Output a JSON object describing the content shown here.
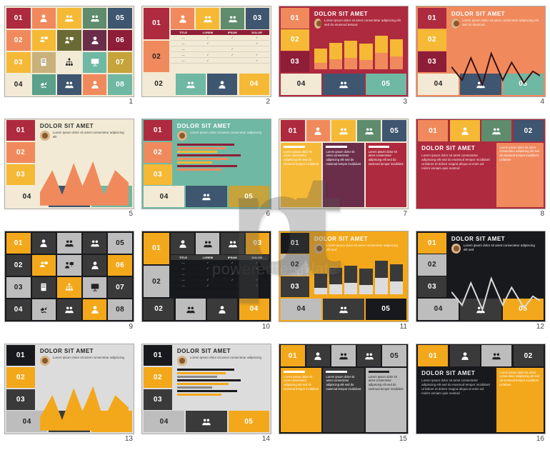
{
  "watermark": {
    "letters": "pt",
    "text": "poweredtemplate"
  },
  "rows_light_colors": {
    "maroon": "#ae2a3e",
    "red": "#b5283e",
    "orange": "#f08a5d",
    "yellow": "#f5b935",
    "mustard": "#c6a33b",
    "teal": "#5aa08a",
    "aqua": "#6fb8a3",
    "navy": "#3e5670",
    "purple": "#6a2e4a",
    "darkred": "#8e1d38",
    "cream": "#f2ead5",
    "white": "#ffffff",
    "tan": "#c9b27a",
    "olive": "#9a9a4f",
    "dark": "#18191c",
    "amber": "#f3a81b",
    "grey": "#bdbdbd",
    "lightgrey": "#dcdcdc",
    "dgrey": "#3a3a3a"
  },
  "slides": [
    {
      "n": 1,
      "bg": "#f2ead5",
      "tiles": [
        [
          "01",
          "#ae2a3e"
        ],
        [
          "",
          "#f08a5d",
          "person"
        ],
        [
          "",
          "#f5b935",
          "group"
        ],
        [
          "",
          "#5e8c6c",
          "group"
        ],
        [
          "05",
          "#3e5670"
        ],
        [
          "02",
          "#f08a5d"
        ],
        [
          "",
          "#f5b935",
          "chat"
        ],
        [
          "",
          "#6a6a34",
          "present"
        ],
        [
          "",
          "#6a2e4a",
          "person"
        ],
        [
          "06",
          "#8e1d38"
        ],
        [
          "03",
          "#f5b935"
        ],
        [
          "",
          "#c9b27a",
          "doc"
        ],
        [
          "",
          "#f2ead5",
          "tree",
          "dark"
        ],
        [
          "",
          "#6fb8a3",
          "board"
        ],
        [
          "07",
          "#c6a33b"
        ],
        [
          "04",
          "#f2ead5",
          "",
          "dark"
        ],
        [
          "",
          "#5aa08a",
          "hands"
        ],
        [
          "",
          "#3e5670",
          "group"
        ],
        [
          "",
          "#f08a5d",
          "person"
        ],
        [
          "08",
          "#6fb8a3"
        ]
      ],
      "cols": 5,
      "rows": 4
    },
    {
      "n": 2,
      "bg": "#f2ead5",
      "left": [
        [
          "01",
          "#ae2a3e"
        ],
        [
          "02",
          "#f08a5d",
          "",
          "dark"
        ]
      ],
      "leftbottom": [
        [
          "02",
          "#f2ead5",
          "hands",
          "dark"
        ],
        [
          "",
          "#6fb8a3",
          "group"
        ],
        [
          "",
          "#3e5670",
          "person"
        ],
        [
          "04",
          "#f5b935"
        ]
      ],
      "topright": [
        [
          "",
          "#f08a5d",
          "person"
        ],
        [
          "",
          "#f5b935",
          "group"
        ],
        [
          "",
          "#5e8c6c",
          "group"
        ],
        [
          "03",
          "#3e5670"
        ]
      ],
      "table": {
        "head_bg": "#8e1d38",
        "head": [
          "TITLE",
          "LOREM",
          "IPSUM",
          "DOLOR"
        ],
        "rows": [
          [
            "—",
            "✓",
            "✓",
            "✓"
          ],
          [
            "—",
            "✓",
            "",
            "✓"
          ],
          [
            "—",
            "",
            "✓",
            ""
          ],
          [
            "—",
            "✓",
            "✓",
            "✓"
          ],
          [
            "—",
            "✓",
            "",
            "✓"
          ]
        ]
      }
    },
    {
      "n": 3,
      "bg": "#ae2a3e",
      "left": [
        [
          "01",
          "#f08a5d"
        ],
        [
          "02",
          "#f5b935"
        ],
        [
          "03",
          "#8e1d38"
        ]
      ],
      "bottom": [
        [
          "04",
          "#f2ead5",
          "hands",
          "dark"
        ],
        [
          "",
          "#3e5670",
          "group"
        ],
        [
          "05",
          "#6fb8a3"
        ]
      ],
      "title": "DOLOR SIT AMET",
      "avatar": true,
      "para": "Lorem ipsum dolor sit amet consectetur adipiscing elit sed do eiusmod tempor",
      "bars": {
        "colors": [
          "#f5b935",
          "#f5b935",
          "#f5b935",
          "#f5b935",
          "#f5b935",
          "#f5b935"
        ],
        "overlay": [
          "#f08a5d",
          "#f08a5d",
          "#f08a5d",
          "#f08a5d",
          "#f08a5d",
          "#f08a5d"
        ],
        "vals": [
          55,
          70,
          75,
          68,
          88,
          78
        ]
      }
    },
    {
      "n": 4,
      "bg": "#f08a5d",
      "left": [
        [
          "01",
          "#ae2a3e"
        ],
        [
          "02",
          "#f5b935"
        ],
        [
          "03",
          "#8e1d38"
        ]
      ],
      "bottom": [
        [
          "04",
          "#f2ead5",
          "hands",
          "dark"
        ],
        [
          "",
          "#3e5670",
          "group"
        ],
        [
          "05",
          "#6fb8a3"
        ]
      ],
      "title": "DOLOR SIT AMET",
      "avatar": true,
      "para": "Lorem ipsum dolor sit amet consectetur adipiscing elit sed do eiusmod",
      "line": {
        "color": "#3a1010",
        "points": [
          0,
          40,
          12,
          55,
          22,
          30,
          35,
          60,
          45,
          25,
          58,
          55,
          68,
          35,
          82,
          58,
          92,
          45,
          100,
          50
        ]
      }
    },
    {
      "n": 5,
      "bg": "#f2ead5",
      "left": [
        [
          "01",
          "#ae2a3e"
        ],
        [
          "02",
          "#f08a5d"
        ],
        [
          "03",
          "#f5b935"
        ]
      ],
      "bottom": [
        [
          "04",
          "#f2ead5",
          "hands",
          "dark"
        ],
        [
          "",
          "#3e5670",
          "group"
        ],
        [
          "05",
          "#6fb8a3"
        ]
      ],
      "title": "DOLOR SIT AMET",
      "title_color": "#333",
      "avatar": true,
      "para": "Lorem ipsum dolor sit amet consectetur adipiscing elit",
      "area": {
        "color": "#f08a5d",
        "points": [
          0,
          55,
          14,
          30,
          25,
          58,
          38,
          22,
          48,
          48,
          60,
          20,
          72,
          58,
          85,
          30,
          100,
          44
        ]
      }
    },
    {
      "n": 6,
      "bg": "#6fb8a3",
      "left": [
        [
          "01",
          "#ae2a3e"
        ],
        [
          "02",
          "#f08a5d"
        ],
        [
          "03",
          "#f5b935"
        ]
      ],
      "bottom": [
        [
          "04",
          "#f2ead5",
          "hands",
          "dark"
        ],
        [
          "",
          "#3e5670",
          "group"
        ],
        [
          "05",
          "#c6a33b"
        ]
      ],
      "title": "DOLOR SIT AMET",
      "avatar": true,
      "para": "Lorem ipsum dolor sit amet consectetur adipiscing",
      "hbars": {
        "colors": [
          "#8e1d38",
          "#f08a5d",
          "#f5b935",
          "#8e1d38",
          "#f08a5d",
          "#f5b935",
          "#8e1d38",
          "#f08a5d"
        ],
        "vals": [
          65,
          55,
          45,
          72,
          58,
          40,
          68,
          50
        ]
      }
    },
    {
      "n": 7,
      "bg": "#f2ead5",
      "top": [
        [
          "01",
          "#ae2a3e"
        ],
        [
          "",
          "#f08a5d",
          "person"
        ],
        [
          "",
          "#f5b935",
          "group"
        ],
        [
          "",
          "#5e8c6c",
          "group"
        ],
        [
          "05",
          "#3e5670"
        ]
      ],
      "cols3": [
        {
          "bg": "#f5b935",
          "head": "TITLE",
          "body": "Lorem ipsum dolor sit amet consectetur adipiscing elit sed do eiusmod tempor incididunt"
        },
        {
          "bg": "#6a2e4a",
          "head": "TITLE",
          "body": "Lorem ipsum dolor sit amet consectetur adipiscing elit sed do eiusmod tempor incididunt"
        },
        {
          "bg": "#ae2a3e",
          "head": "TITLE",
          "body": "Lorem ipsum dolor sit amet consectetur adipiscing elit sed do eiusmod tempor incididunt"
        }
      ]
    },
    {
      "n": 8,
      "bg": "#ae2a3e",
      "top": [
        [
          "01",
          "#f08a5d"
        ],
        [
          "",
          "#f5b935",
          "person"
        ],
        [
          "",
          "#5e8c6c",
          "group"
        ],
        [
          "02",
          "#3e5670"
        ]
      ],
      "title": "DOLOR SIT AMET",
      "para": "Lorem ipsum dolor sit amet consectetur adipiscing elit sed do eiusmod tempor incididunt ut labore et dolore magna aliqua ut enim ad minim veniam quis nostrud",
      "side": {
        "bg": "#f08a5d",
        "body": "Lorem ipsum dolor sit amet consectetur adipiscing elit sed do eiusmod tempor incididunt ut labore"
      }
    },
    {
      "n": 9,
      "bg": "#18191c",
      "dark": true,
      "tiles": [
        [
          "01",
          "#f3a81b"
        ],
        [
          "",
          "#3a3a3a",
          "person"
        ],
        [
          "",
          "#bdbdbd",
          "group",
          "dark"
        ],
        [
          "",
          "#3a3a3a",
          "group"
        ],
        [
          "05",
          "#bdbdbd",
          "",
          "dark"
        ],
        [
          "02",
          "#3a3a3a"
        ],
        [
          "",
          "#f3a81b",
          "chat"
        ],
        [
          "",
          "#bdbdbd",
          "present",
          "dark"
        ],
        [
          "",
          "#3a3a3a",
          "person"
        ],
        [
          "06",
          "#f3a81b"
        ],
        [
          "03",
          "#bdbdbd",
          "",
          "dark"
        ],
        [
          "",
          "#3a3a3a",
          "doc"
        ],
        [
          "",
          "#f3a81b",
          "tree"
        ],
        [
          "",
          "#bdbdbd",
          "board",
          "dark"
        ],
        [
          "07",
          "#3a3a3a"
        ],
        [
          "04",
          "#3a3a3a"
        ],
        [
          "",
          "#bdbdbd",
          "hands",
          "dark"
        ],
        [
          "",
          "#3a3a3a",
          "group"
        ],
        [
          "",
          "#f3a81b",
          "person"
        ],
        [
          "08",
          "#bdbdbd",
          "",
          "dark"
        ]
      ],
      "cols": 5,
      "rows": 4
    },
    {
      "n": 10,
      "bg": "#18191c",
      "dark": true,
      "left": [
        [
          "01",
          "#f3a81b"
        ],
        [
          "02",
          "#bdbdbd",
          "",
          "dark"
        ]
      ],
      "leftbottom": [
        [
          "02",
          "#3a3a3a",
          "hands"
        ],
        [
          "",
          "#bdbdbd",
          "group",
          "dark"
        ],
        [
          "",
          "#3a3a3a",
          "person"
        ],
        [
          "04",
          "#f3a81b"
        ]
      ],
      "topright": [
        [
          "",
          "#3a3a3a",
          "person"
        ],
        [
          "",
          "#bdbdbd",
          "group",
          "dark"
        ],
        [
          "",
          "#3a3a3a",
          "group"
        ],
        [
          "03",
          "#f3a81b"
        ]
      ],
      "table": {
        "head_bg": "#3a3a3a",
        "head": [
          "TITLE",
          "LOREM",
          "IPSUM",
          "DOLOR"
        ],
        "rows": [
          [
            "—",
            "✓",
            "✓",
            "✓"
          ],
          [
            "—",
            "✓",
            "",
            "✓"
          ],
          [
            "—",
            "",
            "✓",
            ""
          ],
          [
            "—",
            "✓",
            "✓",
            "✓"
          ],
          [
            "—",
            "✓",
            "",
            "✓"
          ]
        ]
      }
    },
    {
      "n": 11,
      "bg": "#f3a81b",
      "dark": true,
      "left": [
        [
          "01",
          "#18191c"
        ],
        [
          "02",
          "#bdbdbd",
          "",
          "dark"
        ],
        [
          "03",
          "#3a3a3a"
        ]
      ],
      "bottom": [
        [
          "04",
          "#bdbdbd",
          "hands",
          "dark"
        ],
        [
          "",
          "#3a3a3a",
          "group"
        ],
        [
          "05",
          "#18191c"
        ]
      ],
      "title": "DOLOR SIT AMET",
      "title_color": "#fff",
      "avatar": true,
      "para": "Lorem ipsum dolor sit amet consectetur adipiscing elit sed",
      "bars": {
        "colors": [
          "#3a3a3a",
          "#3a3a3a",
          "#3a3a3a",
          "#3a3a3a",
          "#3a3a3a",
          "#3a3a3a"
        ],
        "overlay": [
          "#dcdcdc",
          "#dcdcdc",
          "#dcdcdc",
          "#dcdcdc",
          "#dcdcdc",
          "#dcdcdc"
        ],
        "vals": [
          55,
          70,
          75,
          68,
          88,
          78
        ]
      }
    },
    {
      "n": 12,
      "bg": "#18191c",
      "dark": true,
      "left": [
        [
          "01",
          "#f3a81b"
        ],
        [
          "02",
          "#bdbdbd",
          "",
          "dark"
        ],
        [
          "03",
          "#3a3a3a"
        ]
      ],
      "bottom": [
        [
          "04",
          "#bdbdbd",
          "hands",
          "dark"
        ],
        [
          "",
          "#3a3a3a",
          "group"
        ],
        [
          "05",
          "#f3a81b"
        ]
      ],
      "title": "DOLOR SIT AMET",
      "avatar": true,
      "para": "Lorem ipsum dolor sit amet consectetur adipiscing elit sed",
      "line": {
        "color": "#dcdcdc",
        "points": [
          0,
          40,
          12,
          55,
          22,
          30,
          35,
          60,
          45,
          25,
          58,
          55,
          68,
          35,
          82,
          58,
          92,
          45,
          100,
          50
        ]
      }
    },
    {
      "n": 13,
      "bg": "#dcdcdc",
      "dark": true,
      "left": [
        [
          "01",
          "#18191c"
        ],
        [
          "02",
          "#f3a81b"
        ],
        [
          "03",
          "#3a3a3a"
        ]
      ],
      "bottom": [
        [
          "04",
          "#bdbdbd",
          "hands",
          "dark"
        ],
        [
          "",
          "#3a3a3a",
          "group"
        ],
        [
          "05",
          "#f3a81b"
        ]
      ],
      "title": "DOLOR SIT AMET",
      "title_color": "#222",
      "avatar": true,
      "para": "Lorem ipsum dolor sit amet consectetur adipiscing",
      "area": {
        "color": "#f3a81b",
        "points": [
          0,
          55,
          14,
          30,
          25,
          58,
          38,
          22,
          48,
          48,
          60,
          20,
          72,
          58,
          85,
          30,
          100,
          44
        ]
      }
    },
    {
      "n": 14,
      "bg": "#dcdcdc",
      "dark": true,
      "left": [
        [
          "01",
          "#18191c"
        ],
        [
          "02",
          "#f3a81b"
        ],
        [
          "03",
          "#3a3a3a"
        ]
      ],
      "bottom": [
        [
          "04",
          "#bdbdbd",
          "hands",
          "dark"
        ],
        [
          "",
          "#3a3a3a",
          "group"
        ],
        [
          "05",
          "#f3a81b"
        ]
      ],
      "title": "DOLOR SIT AMET",
      "title_color": "#222",
      "avatar": true,
      "para": "Lorem ipsum dolor sit amet consectetur adipiscing",
      "hbars": {
        "colors": [
          "#18191c",
          "#f3a81b",
          "#888",
          "#18191c",
          "#f3a81b",
          "#888",
          "#18191c",
          "#f3a81b"
        ],
        "vals": [
          65,
          55,
          45,
          72,
          58,
          40,
          68,
          50
        ]
      }
    },
    {
      "n": 15,
      "bg": "#18191c",
      "dark": true,
      "top": [
        [
          "01",
          "#f3a81b"
        ],
        [
          "",
          "#3a3a3a",
          "person"
        ],
        [
          "",
          "#bdbdbd",
          "group",
          "dark"
        ],
        [
          "",
          "#3a3a3a",
          "group"
        ],
        [
          "05",
          "#bdbdbd",
          "",
          "dark"
        ]
      ],
      "cols3": [
        {
          "bg": "#f3a81b",
          "head": "TITLE",
          "body": "Lorem ipsum dolor sit amet consectetur adipiscing elit sed do eiusmod tempor incididunt"
        },
        {
          "bg": "#3a3a3a",
          "head": "TITLE",
          "body": "Lorem ipsum dolor sit amet consectetur adipiscing elit sed do eiusmod tempor incididunt"
        },
        {
          "bg": "#bdbdbd",
          "head": "TITLE",
          "body": "Lorem ipsum dolor sit amet consectetur adipiscing elit sed do eiusmod tempor incididunt",
          "dark": true
        }
      ]
    },
    {
      "n": 16,
      "bg": "#18191c",
      "dark": true,
      "top": [
        [
          "01",
          "#f3a81b"
        ],
        [
          "",
          "#3a3a3a",
          "person"
        ],
        [
          "",
          "#bdbdbd",
          "group",
          "dark"
        ],
        [
          "02",
          "#3a3a3a"
        ]
      ],
      "title": "DOLOR SIT AMET",
      "para": "Lorem ipsum dolor sit amet consectetur adipiscing elit sed do eiusmod tempor incididunt ut labore et dolore magna aliqua ut enim ad minim veniam quis nostrud",
      "side": {
        "bg": "#f3a81b",
        "body": "Lorem ipsum dolor sit amet consectetur adipiscing elit sed do eiusmod tempor incididunt ut labore"
      }
    }
  ]
}
